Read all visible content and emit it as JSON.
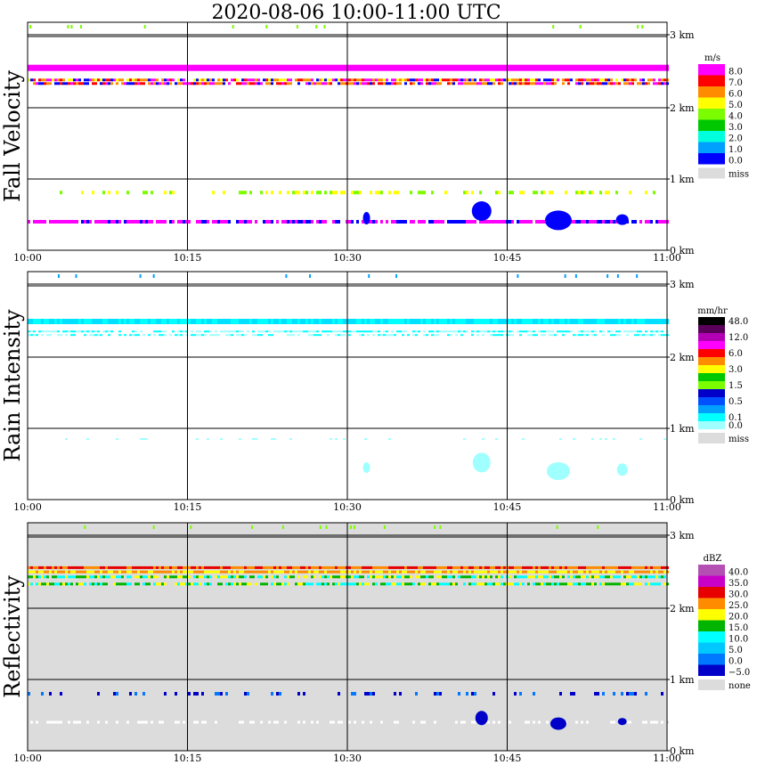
{
  "title": "2020-08-06   10:00-11:00 UTC",
  "chart_data": [
    {
      "type": "heatmap",
      "ylabel": "Fall Velocity",
      "units": "m/s",
      "x_ticks": [
        "10:00",
        "10:15",
        "10:30",
        "10:45",
        "11:00"
      ],
      "y_ticks": [
        "3 km",
        "2 km",
        "1 km",
        "0 km"
      ],
      "ylim": [
        0,
        3.2
      ],
      "background": "#ffffff",
      "legend": [
        {
          "label": "8.0",
          "color": "#ff00ff"
        },
        {
          "label": "7.0",
          "color": "#ff0000"
        },
        {
          "label": "6.0",
          "color": "#ff8c00"
        },
        {
          "label": "5.0",
          "color": "#ffff00"
        },
        {
          "label": "4.0",
          "color": "#7cfc00"
        },
        {
          "label": "3.0",
          "color": "#00c800"
        },
        {
          "label": "2.0",
          "color": "#00ffdc"
        },
        {
          "label": "1.0",
          "color": "#00a0ff"
        },
        {
          "label": "0.0",
          "color": "#0000ff"
        },
        {
          "label": "miss",
          "color": "#dcdcdc"
        }
      ]
    },
    {
      "type": "heatmap",
      "ylabel": "Rain Intensity",
      "units": "mm/hr",
      "x_ticks": [
        "10:00",
        "10:15",
        "10:30",
        "10:45",
        "11:00"
      ],
      "y_ticks": [
        "3 km",
        "2 km",
        "1 km",
        "0 km"
      ],
      "ylim": [
        0,
        3.2
      ],
      "background": "#ffffff",
      "legend": [
        {
          "label": "48.0",
          "color": "#000000"
        },
        {
          "label": "",
          "color": "#5a005a"
        },
        {
          "label": "12.0",
          "color": "#b400b4"
        },
        {
          "label": "",
          "color": "#ff00ff"
        },
        {
          "label": "6.0",
          "color": "#ff0000"
        },
        {
          "label": "",
          "color": "#ff8c00"
        },
        {
          "label": "3.0",
          "color": "#ffff00"
        },
        {
          "label": "",
          "color": "#00c800"
        },
        {
          "label": "1.5",
          "color": "#7cfc00"
        },
        {
          "label": "",
          "color": "#0000c8"
        },
        {
          "label": "0.5",
          "color": "#0050ff"
        },
        {
          "label": "",
          "color": "#00a0ff"
        },
        {
          "label": "0.1",
          "color": "#00ffff"
        },
        {
          "label": "0.0",
          "color": "#a0ffff"
        },
        {
          "label": "miss",
          "color": "#dcdcdc"
        }
      ]
    },
    {
      "type": "heatmap",
      "ylabel": "Reflectivity",
      "units": "dBZ",
      "x_ticks": [
        "10:00",
        "10:15",
        "10:30",
        "10:45",
        "11:00"
      ],
      "y_ticks": [
        "3 km",
        "2 km",
        "1 km",
        "0 km"
      ],
      "ylim": [
        0,
        3.2
      ],
      "background": "#dcdcdc",
      "legend": [
        {
          "label": "40.0",
          "color": "#b450b4"
        },
        {
          "label": "35.0",
          "color": "#c800c8"
        },
        {
          "label": "30.0",
          "color": "#e60000"
        },
        {
          "label": "25.0",
          "color": "#ff8c00"
        },
        {
          "label": "20.0",
          "color": "#ffff00"
        },
        {
          "label": "15.0",
          "color": "#00b400"
        },
        {
          "label": "10.0",
          "color": "#00ffff"
        },
        {
          "label": "5.0",
          "color": "#00c8ff"
        },
        {
          "label": "0.0",
          "color": "#0078ff"
        },
        {
          "label": "−5.0",
          "color": "#0000c8"
        },
        {
          "label": "none",
          "color": "#dcdcdc"
        }
      ]
    }
  ]
}
